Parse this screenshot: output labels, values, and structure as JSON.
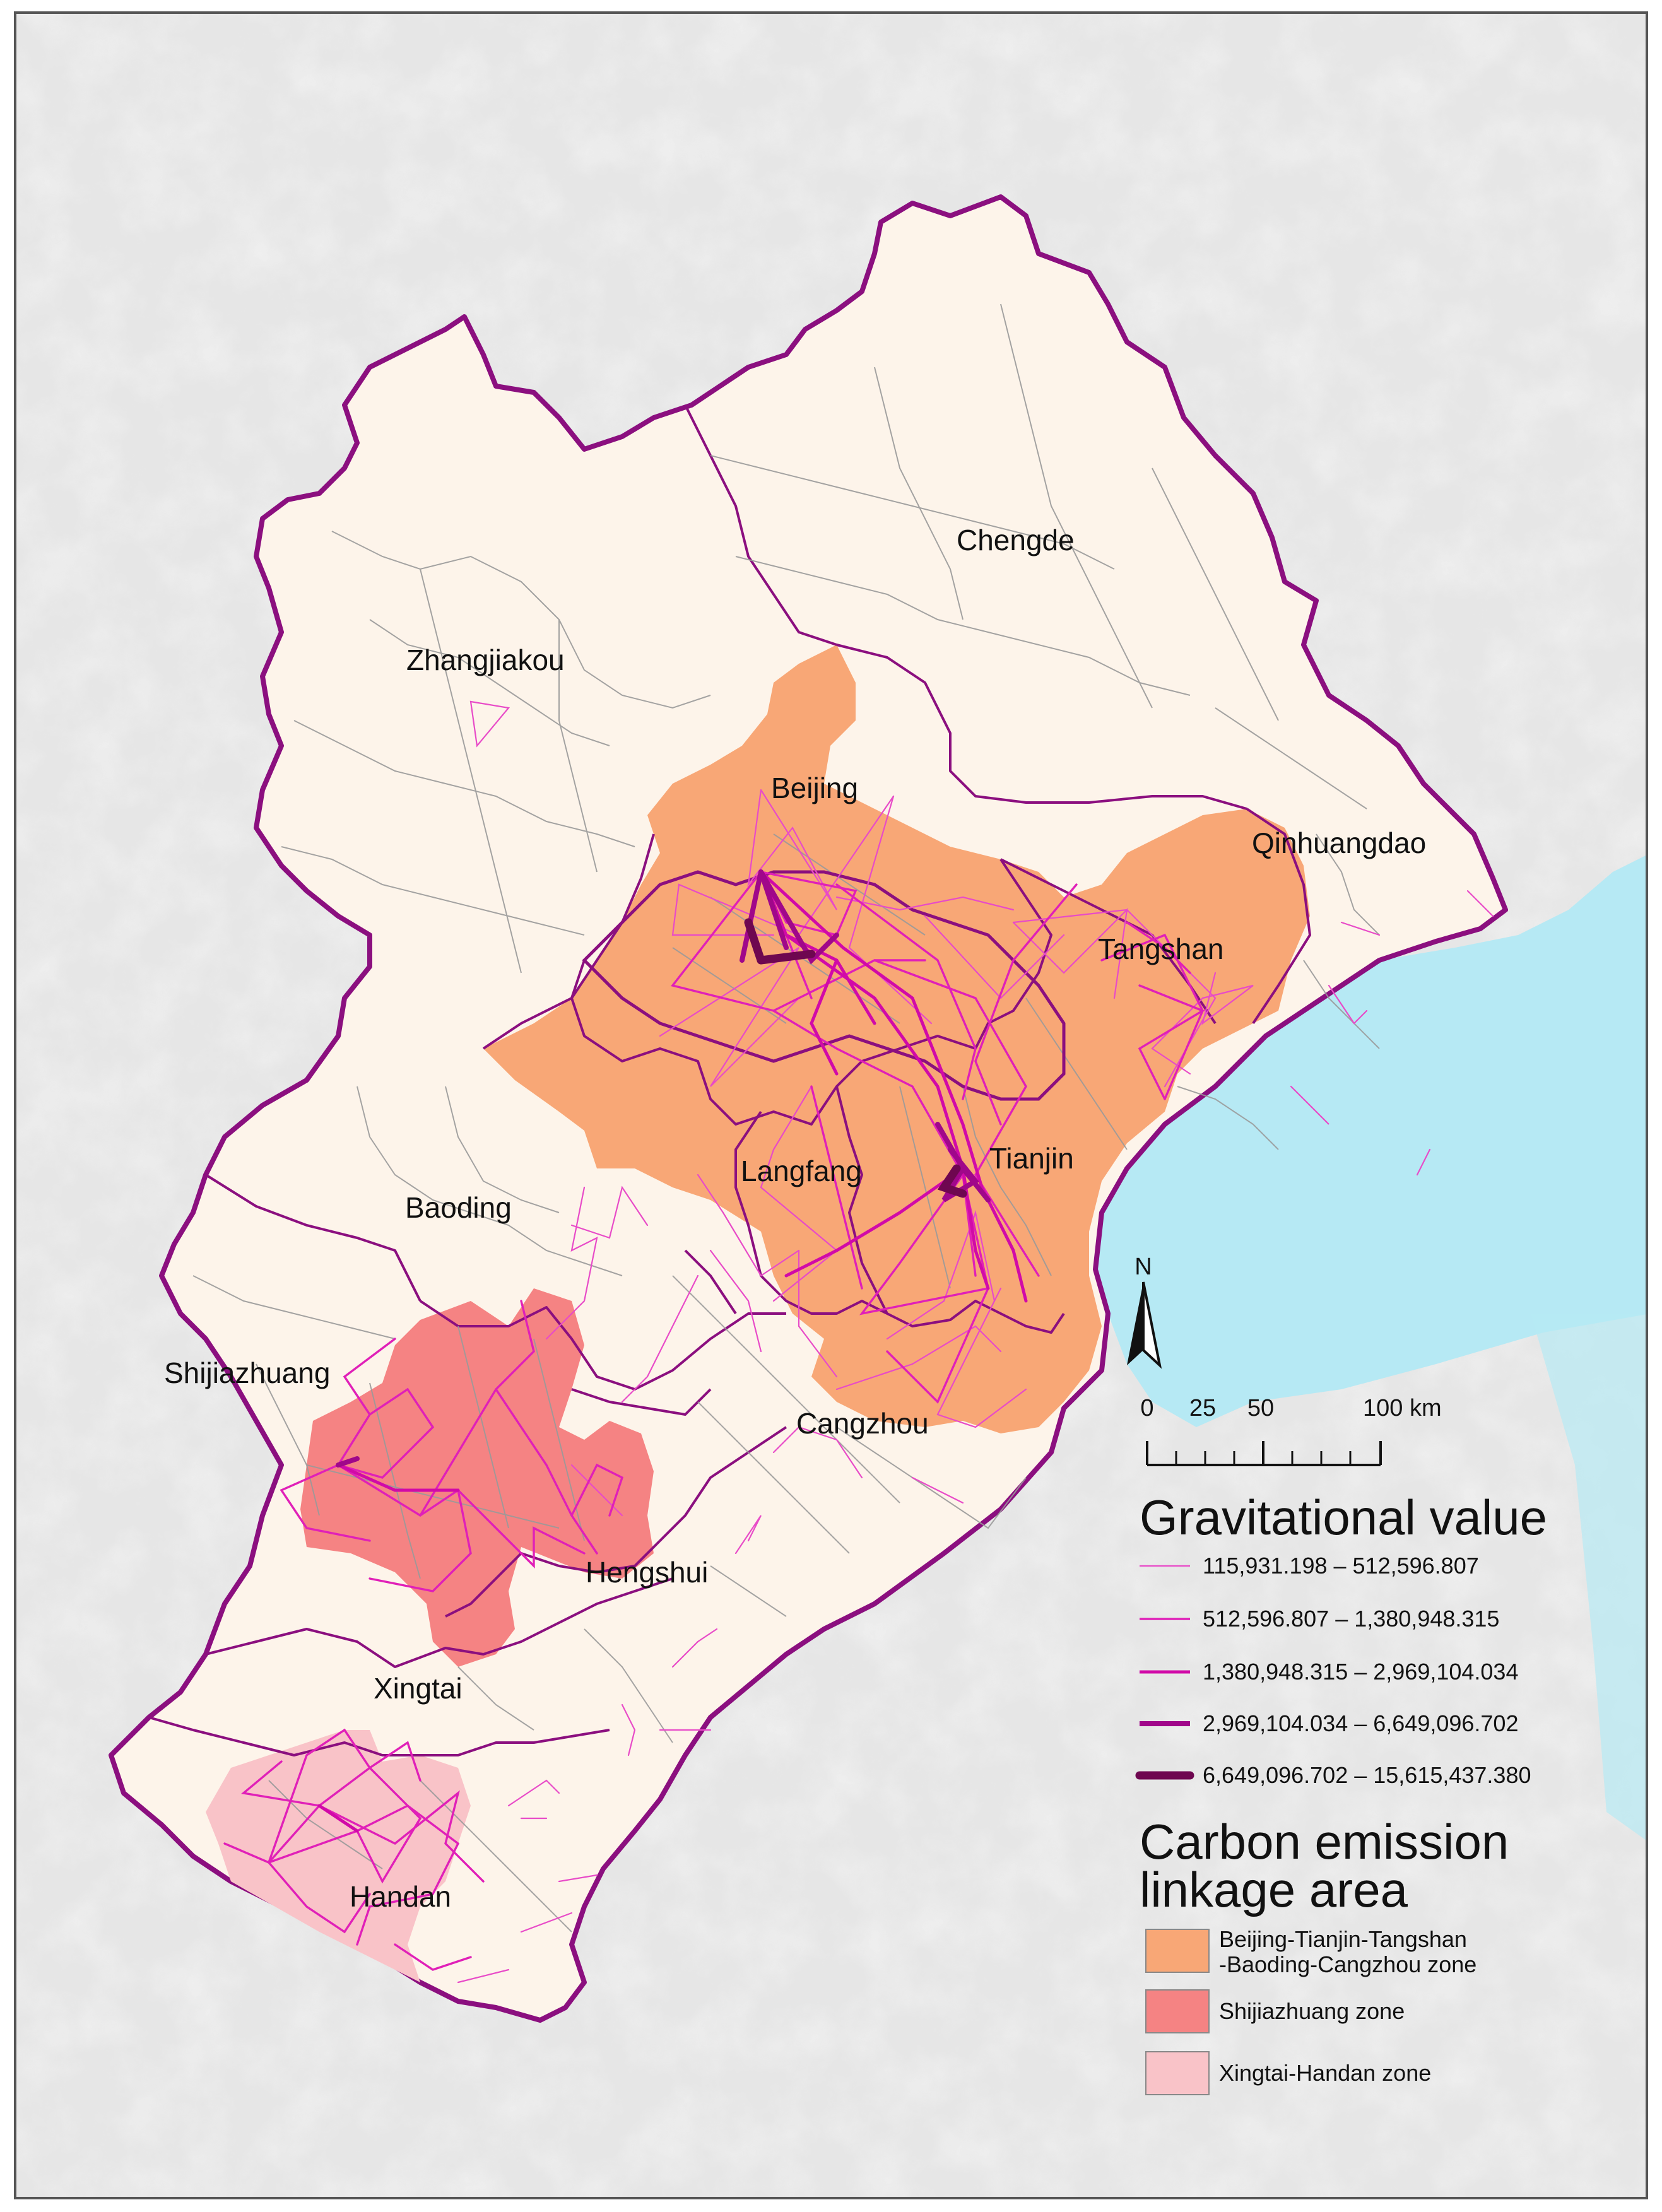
{
  "map": {
    "cities": [
      "Chengde",
      "Zhangjiakou",
      "Beijing",
      "Qinhuangdao",
      "Tangshan",
      "Tianjin",
      "Langfang",
      "Baoding",
      "Shijiazhuang",
      "Cangzhou",
      "Hengshui",
      "Xingtai",
      "Handan"
    ],
    "north_arrow": "N",
    "scale_bar": {
      "ticks": [
        "0",
        "25",
        "50",
        "100 km"
      ]
    },
    "colors": {
      "land": "#fdf4ea",
      "sea": "#b6e9f4",
      "province_border": "#8b0f7f",
      "zone_beijing_tianjin": "#f8a776",
      "zone_shijiazhuang": "#f58383",
      "zone_xingtai_handan": "#f9c3c8",
      "links": [
        "#e84bc8",
        "#e020b8",
        "#d10aa8",
        "#a0078a",
        "#6e0750"
      ]
    }
  },
  "legend": {
    "gravity": {
      "title": "Gravitational value",
      "classes": [
        {
          "label": "115,931.198 – 512,596.807",
          "color": "#e84bc8"
        },
        {
          "label": "512,596.807 – 1,380,948.315",
          "color": "#e020b8"
        },
        {
          "label": "1,380,948.315 – 2,969,104.034",
          "color": "#d10aa8"
        },
        {
          "label": "2,969,104.034 – 6,649,096.702",
          "color": "#a0078a"
        },
        {
          "label": "6,649,096.702 – 15,615,437.380",
          "color": "#6e0750"
        }
      ]
    },
    "zones": {
      "title_line1": "Carbon emission",
      "title_line2": "linkage area",
      "items": [
        {
          "label_line1": "Beijing-Tianjin-Tangshan",
          "label_line2": "-Baoding-Cangzhou zone",
          "color": "#f8a776"
        },
        {
          "label_line1": "Shijiazhuang zone",
          "color": "#f58383"
        },
        {
          "label_line1": "Xingtai-Handan zone",
          "color": "#f9c3c8"
        }
      ]
    }
  }
}
